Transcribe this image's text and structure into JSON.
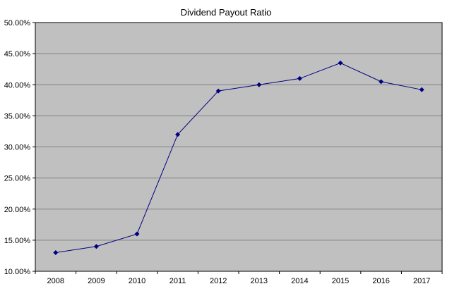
{
  "chart_data": {
    "type": "line",
    "title": "Dividend Payout Ratio",
    "categories": [
      "2008",
      "2009",
      "2010",
      "2011",
      "2012",
      "2013",
      "2014",
      "2015",
      "2016",
      "2017"
    ],
    "series": [
      {
        "name": "Dividend Payout Ratio",
        "values": [
          13.0,
          14.0,
          16.0,
          32.0,
          39.0,
          40.0,
          41.0,
          43.5,
          40.5,
          39.2
        ]
      }
    ],
    "xlabel": "",
    "ylabel": "",
    "ylim": [
      10,
      50
    ],
    "ytick_step": 5,
    "ytick_labels": [
      "10.00%",
      "15.00%",
      "20.00%",
      "25.00%",
      "30.00%",
      "35.00%",
      "40.00%",
      "45.00%",
      "50.00%"
    ],
    "grid": "horizontal",
    "legend": "none",
    "plot_bg": "#c0c0c0",
    "page_bg": "#ffffff",
    "line_color": "#000080",
    "marker": "diamond",
    "gridline_color": "#808080",
    "axis_color": "#000000",
    "text_color": "#000000"
  }
}
